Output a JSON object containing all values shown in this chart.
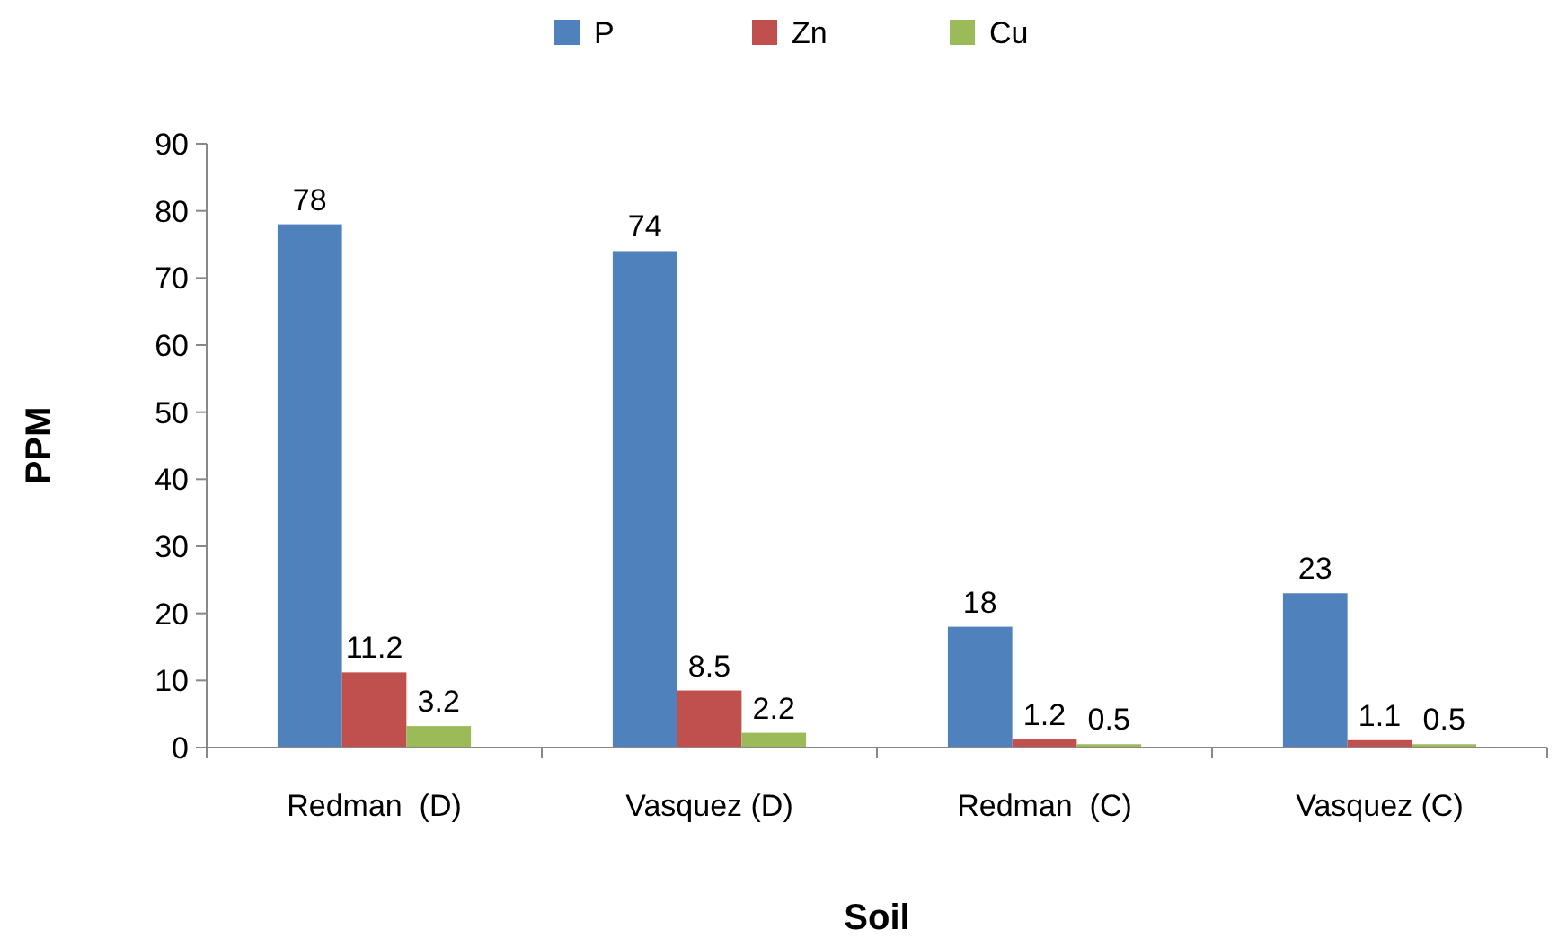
{
  "chart_data": {
    "type": "bar",
    "xlabel": "Soil",
    "ylabel": "PPM",
    "categories": [
      "Redman  (D)",
      "Vasquez (D)",
      "Redman  (C)",
      "Vasquez (C)"
    ],
    "series": [
      {
        "name": "P",
        "color": "#4f81bd",
        "values": [
          78,
          74,
          18,
          23
        ]
      },
      {
        "name": "Zn",
        "color": "#c0504d",
        "values": [
          11.2,
          8.5,
          1.2,
          1.1
        ]
      },
      {
        "name": "Cu",
        "color": "#9bbb59",
        "values": [
          3.2,
          2.2,
          0.5,
          0.5
        ]
      }
    ],
    "ylim": [
      0,
      90
    ],
    "yticks": [
      0,
      10,
      20,
      30,
      40,
      50,
      60,
      70,
      80,
      90
    ],
    "data_labels": true,
    "legend": "top",
    "grid": false
  }
}
